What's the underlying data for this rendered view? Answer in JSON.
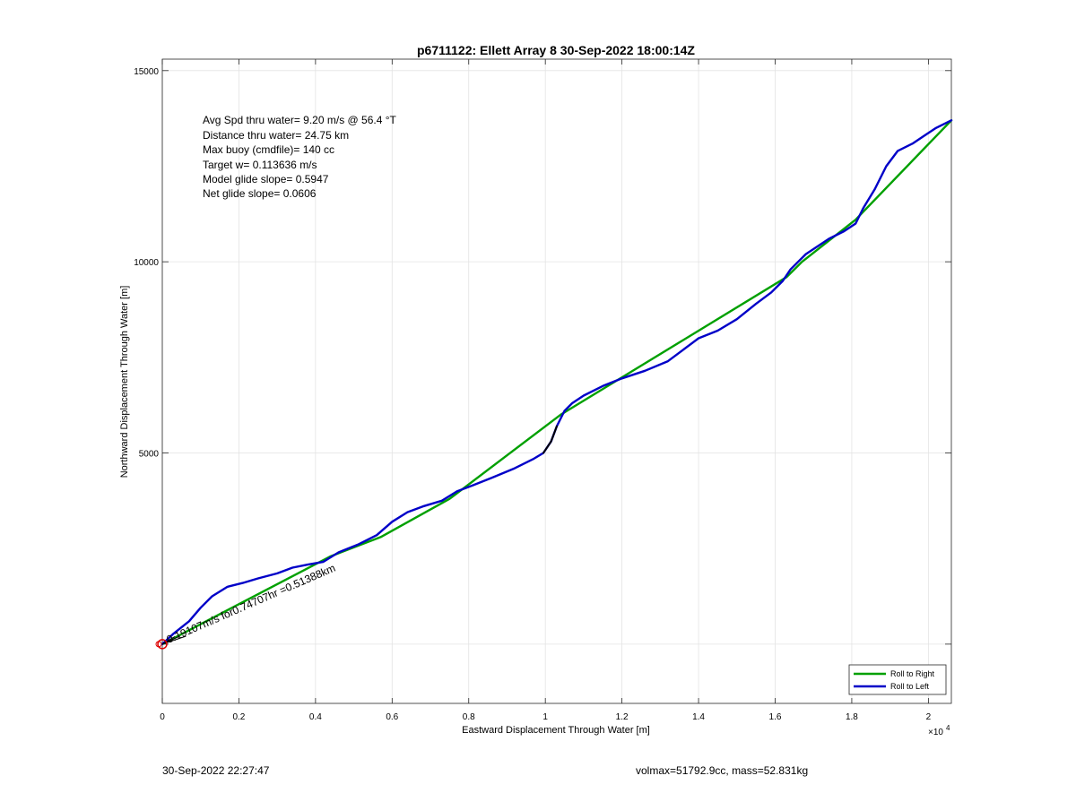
{
  "chart_data": {
    "type": "line",
    "title": "p6711122: Ellett Array 8 30-Sep-2022 18:00:14Z",
    "xlabel": "Eastward Displacement Through Water [m]",
    "ylabel": "Northward Displacement Through Water [m]",
    "xlim": [
      0,
      20600
    ],
    "ylim": [
      -1550,
      15300
    ],
    "x_ticks": [
      0,
      2000,
      4000,
      6000,
      8000,
      10000,
      12000,
      14000,
      16000,
      18000,
      20000
    ],
    "x_tick_labels": [
      "0",
      "0.2",
      "0.4",
      "0.6",
      "0.8",
      "1",
      "1.2",
      "1.4",
      "1.6",
      "1.8",
      "2"
    ],
    "x_exponent_label": "×10",
    "x_exponent_power": "4",
    "y_ticks": [
      0,
      5000,
      10000,
      15000
    ],
    "y_tick_labels": [
      "",
      "5000",
      "10000",
      "15000"
    ],
    "grid": true,
    "legend_position": "bottom-right",
    "series": [
      {
        "name": "Roll to Right",
        "color": "#00a000",
        "x": [
          0,
          4400,
          5700,
          7500,
          10400,
          16300,
          16700,
          18100,
          20600
        ],
        "y": [
          0,
          2300,
          2800,
          3800,
          6000,
          9600,
          10000,
          11100,
          13700
        ]
      },
      {
        "name": "Roll to Left",
        "color": "#0000c8",
        "x": [
          0,
          300,
          700,
          1000,
          1300,
          1700,
          2100,
          2500,
          3000,
          3400,
          3800,
          4200,
          4600,
          5100,
          5600,
          6000,
          6400,
          6800,
          7300,
          7700,
          8100,
          8600,
          9200,
          9700,
          9950,
          10150,
          10300,
          10500,
          10700,
          11000,
          11500,
          12000,
          12600,
          13200,
          13600,
          14000,
          14500,
          15000,
          15500,
          15900,
          16200,
          16400,
          16600,
          16800,
          17100,
          17400,
          17800,
          18100,
          18300,
          18600,
          18900,
          19200,
          19600,
          19900,
          20200,
          20600
        ],
        "y": [
          0,
          280,
          600,
          950,
          1250,
          1500,
          1600,
          1720,
          1850,
          2000,
          2080,
          2150,
          2400,
          2600,
          2850,
          3200,
          3450,
          3600,
          3750,
          4000,
          4150,
          4350,
          4600,
          4850,
          5000,
          5300,
          5700,
          6100,
          6300,
          6500,
          6750,
          6950,
          7150,
          7400,
          7700,
          8000,
          8200,
          8500,
          8900,
          9200,
          9500,
          9800,
          10000,
          10200,
          10400,
          10600,
          10800,
          11000,
          11400,
          11900,
          12500,
          12900,
          13100,
          13300,
          13500,
          13700
        ]
      },
      {
        "name": "",
        "color": "#000000",
        "x": [
          9950,
          10150,
          10300
        ],
        "y": [
          5000,
          5300,
          5700
        ]
      }
    ],
    "annotations": {
      "stats_lines": [
        "Avg Spd thru water=  9.20 m/s @  56.4 °T",
        "Distance thru water= 24.75 km",
        "Max buoy (cmdfile)= 140 cc",
        "Target w= 0.113636 m/s",
        "Model glide slope= 0.5947",
        "Net glide slope= 0.0606"
      ],
      "rotated_label": "0.19107m/s for0.74707hr =0.51388km",
      "start_marker": {
        "x": 0,
        "y": 0,
        "color": "#dd0000"
      }
    }
  },
  "footer": {
    "left": "30-Sep-2022 22:27:47",
    "right": "volmax=51792.9cc, mass=52.831kg"
  }
}
